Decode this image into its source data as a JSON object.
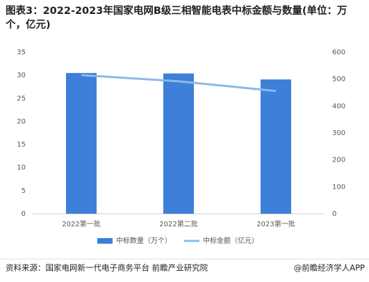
{
  "chart_data": {
    "type": "bar-line",
    "title": "图表3：2022-2023年国家电网B级三相智能电表中标金额与数量(单位：万个，亿元)",
    "categories": [
      "2022第一批",
      "2022第二批",
      "2023第一批"
    ],
    "series": [
      {
        "name": "中标数量（万个）",
        "color": "#3d7fd9",
        "type": "bar",
        "axis": "y",
        "values": [
          30.5,
          30.4,
          29.1
        ]
      },
      {
        "name": "中标金额（亿元）",
        "color": "#8cb9e6",
        "type": "line",
        "axis": "y2",
        "values": [
          515,
          492,
          456
        ]
      }
    ],
    "ylim": [
      0,
      35
    ],
    "yticks": [
      0,
      5,
      10,
      15,
      20,
      25,
      30,
      35
    ],
    "y2lim": [
      0,
      600
    ],
    "y2ticks": [
      0,
      100,
      200,
      300,
      400,
      500,
      600
    ],
    "grid": false,
    "source": "资料来源：国家电网新一代电子商务平台 前瞻产业研究院",
    "credit": "@前瞻经济学人APP"
  }
}
